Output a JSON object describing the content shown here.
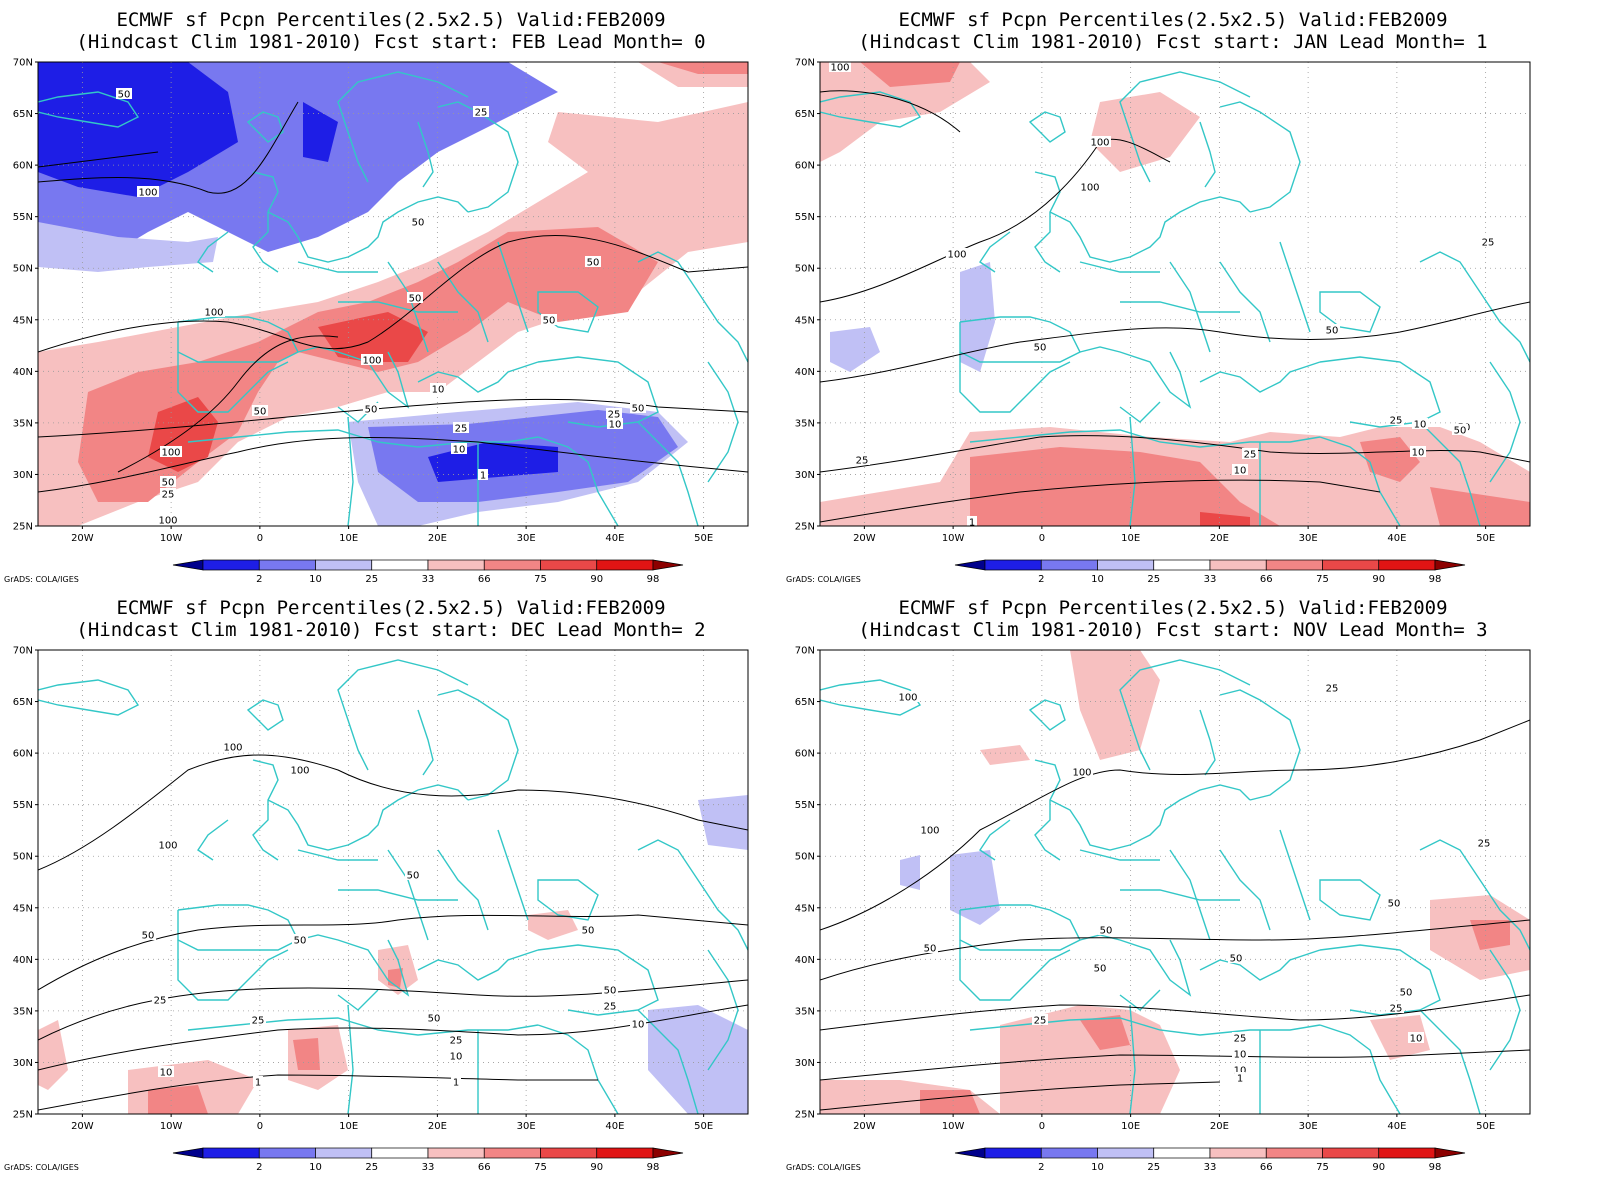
{
  "panels": [
    {
      "title_line1": "ECMWF sf Pcpn Percentiles(2.5x2.5) Valid:FEB2009",
      "title_line2": "(Hindcast Clim 1981-2010) Fcst start: FEB  Lead Month= 0",
      "contour_labels": [
        "50",
        "25",
        "100",
        "50",
        "100",
        "50",
        "50",
        "50",
        "100",
        "100",
        "10",
        "50",
        "50",
        "25",
        "10",
        "1",
        "25",
        "10",
        "50",
        "100",
        "50",
        "25"
      ]
    },
    {
      "title_line1": "ECMWF sf Pcpn Percentiles(2.5x2.5) Valid:FEB2009",
      "title_line2": "(Hindcast Clim 1981-2010) Fcst start: JAN  Lead Month= 1",
      "contour_labels": [
        "100",
        "100",
        "100",
        "100",
        "50",
        "50",
        "50",
        "25",
        "25",
        "25",
        "10",
        "10",
        "25",
        "10",
        "50",
        "1"
      ]
    },
    {
      "title_line1": "ECMWF sf Pcpn Percentiles(2.5x2.5) Valid:FEB2009",
      "title_line2": "(Hindcast Clim 1981-2010) Fcst start: DEC  Lead Month= 2",
      "contour_labels": [
        "100",
        "100",
        "100",
        "50",
        "50",
        "50",
        "50",
        "25",
        "25",
        "50",
        "25",
        "10",
        "1",
        "50",
        "25",
        "10",
        "10",
        "1"
      ]
    },
    {
      "title_line1": "ECMWF sf Pcpn Percentiles(2.5x2.5) Valid:FEB2009",
      "title_line2": "(Hindcast Clim 1981-2010) Fcst start: NOV  Lead Month= 3",
      "contour_labels": [
        "100",
        "100",
        "100",
        "25",
        "25",
        "50",
        "50",
        "50",
        "50",
        "50",
        "50",
        "25",
        "25",
        "10",
        "10",
        "25",
        "10",
        "1"
      ]
    }
  ],
  "lat_labels": [
    "70N",
    "65N",
    "60N",
    "55N",
    "50N",
    "45N",
    "40N",
    "35N",
    "30N",
    "25N"
  ],
  "lon_labels": [
    "20W",
    "10W",
    "0",
    "10E",
    "20E",
    "30E",
    "40E",
    "50E"
  ],
  "colorbar": {
    "labels": [
      "2",
      "10",
      "25",
      "33",
      "66",
      "75",
      "90",
      "98"
    ],
    "colors": [
      "#00008c",
      "#1e1ee6",
      "#7878f0",
      "#c0c0f5",
      "#ffffff",
      "#f7c0c0",
      "#f28585",
      "#ea4848",
      "#e01414",
      "#8c0000"
    ]
  },
  "credit": "GrADS: COLA/IGES",
  "coast_color": "#33c7c7"
}
